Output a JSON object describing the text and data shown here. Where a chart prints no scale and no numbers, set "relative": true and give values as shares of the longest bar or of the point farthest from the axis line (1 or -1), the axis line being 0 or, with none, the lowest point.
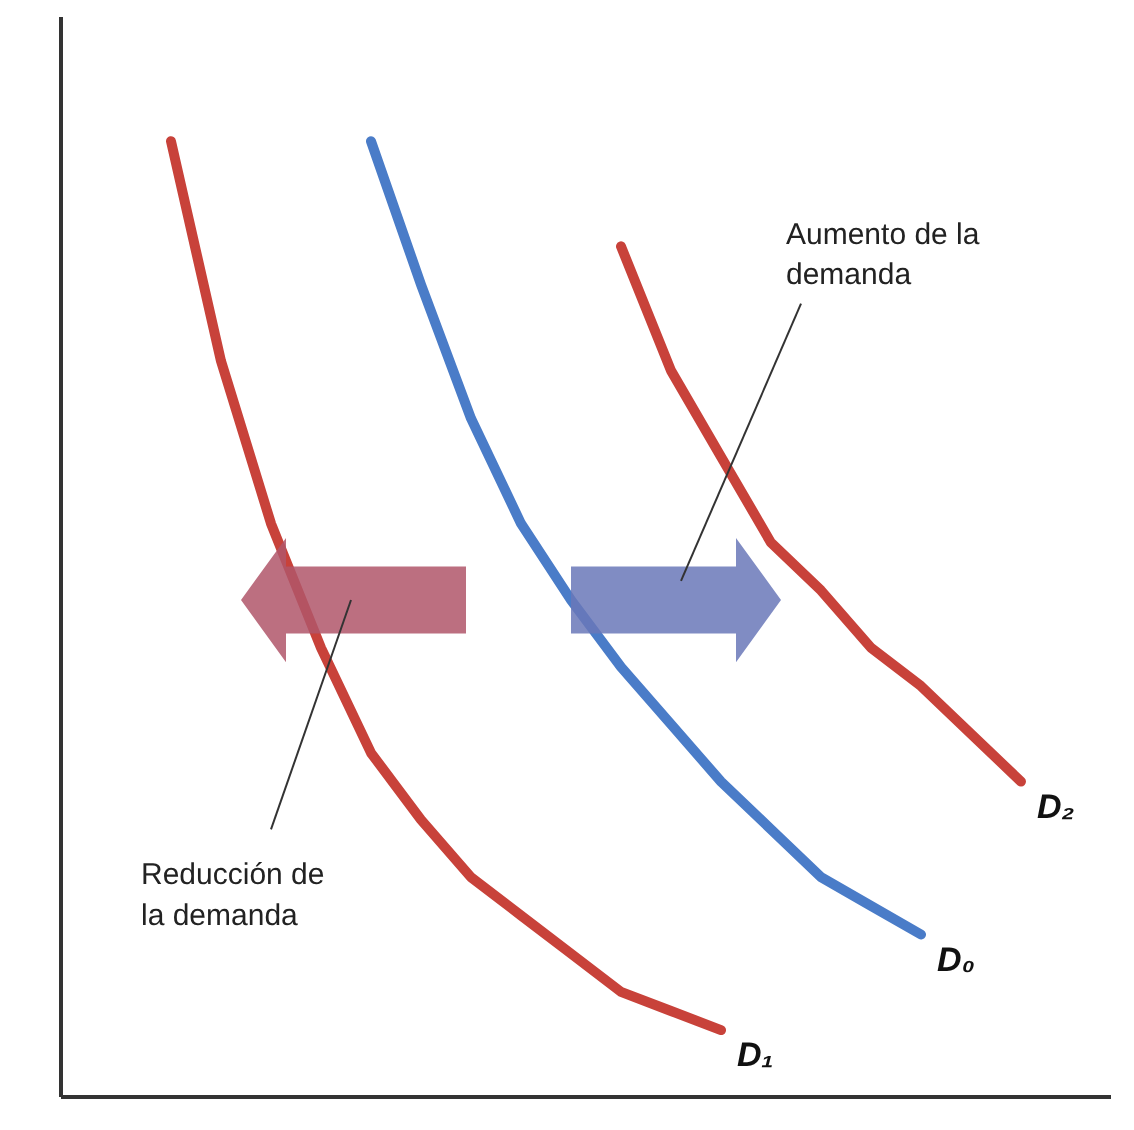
{
  "chart_data": {
    "type": "line",
    "relative": true,
    "tick_labels": false,
    "grid": false,
    "legend": false,
    "marker": "none",
    "line_style": "solid",
    "categories": [
      null,
      null,
      null,
      null,
      null,
      null,
      null,
      null,
      null,
      null,
      null,
      null,
      null,
      null,
      null,
      null,
      null,
      null,
      null
    ],
    "series": [
      {
        "name": "D₁",
        "color": "#c8423a",
        "values": [
          1.0,
          0.77,
          0.6,
          0.47,
          0.36,
          0.29,
          0.23,
          0.19,
          0.15,
          0.11,
          0.09,
          0.07,
          null,
          null,
          null,
          null,
          null,
          null,
          null
        ]
      },
      {
        "name": "D₀",
        "color": "#4a7cc8",
        "values": [
          null,
          null,
          null,
          null,
          1.0,
          0.85,
          0.71,
          0.6,
          0.52,
          0.45,
          0.39,
          0.33,
          0.28,
          0.23,
          0.2,
          0.17,
          null,
          null,
          null
        ]
      },
      {
        "name": "D₂",
        "color": "#c8423a",
        "values": [
          null,
          null,
          null,
          null,
          null,
          null,
          null,
          null,
          null,
          0.89,
          0.76,
          0.67,
          0.58,
          0.53,
          0.47,
          0.43,
          0.38,
          0.33,
          null
        ]
      }
    ],
    "annotations": [
      "Aumento de la demanda",
      "Reducción de la demanda"
    ]
  }
}
